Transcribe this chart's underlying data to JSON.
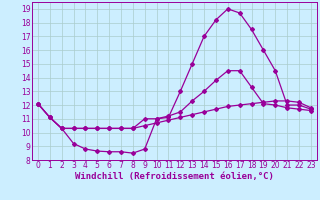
{
  "xlabel": "Windchill (Refroidissement éolien,°C)",
  "bg_color": "#cceeff",
  "grid_color": "#aacccc",
  "line_color": "#990099",
  "xlim": [
    -0.5,
    23.5
  ],
  "ylim": [
    8,
    19.5
  ],
  "xticks": [
    0,
    1,
    2,
    3,
    4,
    5,
    6,
    7,
    8,
    9,
    10,
    11,
    12,
    13,
    14,
    15,
    16,
    17,
    18,
    19,
    20,
    21,
    22,
    23
  ],
  "yticks": [
    8,
    9,
    10,
    11,
    12,
    13,
    14,
    15,
    16,
    17,
    18,
    19
  ],
  "line1_x": [
    0,
    1,
    2,
    3,
    4,
    5,
    6,
    7,
    8,
    9,
    10,
    11,
    12,
    13,
    14,
    15,
    16,
    17,
    18,
    19,
    20,
    21,
    22,
    23
  ],
  "line1_y": [
    12.1,
    11.1,
    10.3,
    9.2,
    8.8,
    8.65,
    8.6,
    8.6,
    8.5,
    8.8,
    11.0,
    11.1,
    13.0,
    15.0,
    17.0,
    18.2,
    19.0,
    18.7,
    17.5,
    16.0,
    14.5,
    12.0,
    12.0,
    11.7
  ],
  "line2_x": [
    0,
    1,
    2,
    3,
    4,
    5,
    6,
    7,
    8,
    9,
    10,
    11,
    12,
    13,
    14,
    15,
    16,
    17,
    18,
    19,
    20,
    21,
    22,
    23
  ],
  "line2_y": [
    12.1,
    11.1,
    10.3,
    10.3,
    10.3,
    10.3,
    10.3,
    10.3,
    10.3,
    11.0,
    11.0,
    11.2,
    11.5,
    12.3,
    13.0,
    13.8,
    14.5,
    14.5,
    13.3,
    12.1,
    12.0,
    11.8,
    11.7,
    11.6
  ],
  "line3_x": [
    0,
    1,
    2,
    3,
    4,
    5,
    6,
    7,
    8,
    9,
    10,
    11,
    12,
    13,
    14,
    15,
    16,
    17,
    18,
    19,
    20,
    21,
    22,
    23
  ],
  "line3_y": [
    12.1,
    11.1,
    10.3,
    10.3,
    10.3,
    10.3,
    10.3,
    10.3,
    10.3,
    10.5,
    10.7,
    10.9,
    11.1,
    11.3,
    11.5,
    11.7,
    11.9,
    12.0,
    12.1,
    12.2,
    12.3,
    12.3,
    12.2,
    11.8
  ],
  "marker": "D",
  "markersize": 2,
  "linewidth": 0.9,
  "tick_fontsize": 5.5,
  "xlabel_fontsize": 6.5
}
